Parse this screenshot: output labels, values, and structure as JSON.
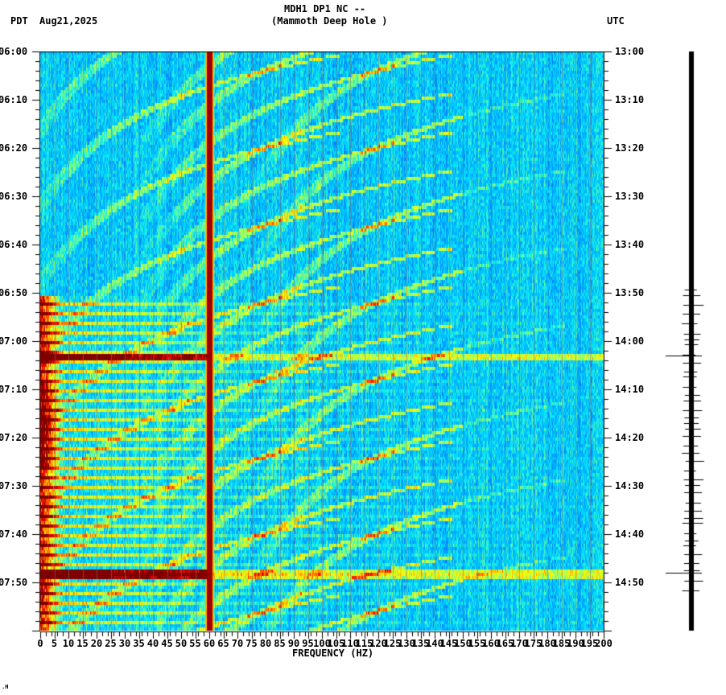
{
  "header": {
    "station_line": "MDH1 DP1 NC --",
    "station_name": "(Mammoth Deep Hole )",
    "left_tz": "PDT",
    "date": "Aug21,2025",
    "right_tz": "UTC"
  },
  "footer": {
    "corner_mark": ".H"
  },
  "colors": {
    "background": "#ffffff",
    "axis": "#000000",
    "colormap": [
      "#0000c8",
      "#0050ff",
      "#0096ff",
      "#00e6ff",
      "#80ff80",
      "#ffff00",
      "#ff8000",
      "#ff0000",
      "#800000"
    ]
  },
  "chart_data": {
    "type": "heatmap",
    "title": "MDH1 DP1 NC -- (Mammoth Deep Hole )",
    "xlabel": "FREQUENCY (HZ)",
    "ylabel_left": "PDT",
    "ylabel_right": "UTC",
    "xlim": [
      0,
      200
    ],
    "x_ticks": [
      0,
      5,
      10,
      15,
      20,
      25,
      30,
      35,
      40,
      45,
      50,
      55,
      60,
      65,
      70,
      75,
      80,
      85,
      90,
      95,
      100,
      105,
      110,
      115,
      120,
      125,
      130,
      135,
      140,
      145,
      150,
      155,
      160,
      165,
      170,
      175,
      180,
      185,
      190,
      195,
      200
    ],
    "y_ticks_left": [
      "06:00",
      "06:10",
      "06:20",
      "06:30",
      "06:40",
      "06:50",
      "07:00",
      "07:10",
      "07:20",
      "07:30",
      "07:40",
      "07:50"
    ],
    "y_ticks_right": [
      "13:00",
      "13:10",
      "13:20",
      "13:30",
      "13:40",
      "13:50",
      "14:00",
      "14:10",
      "14:20",
      "14:30",
      "14:40",
      "14:50"
    ],
    "time_range_minutes": 120,
    "features": {
      "constant_line_hz": 60,
      "strong_broadband_events_pdt": [
        "07:03",
        "07:48"
      ],
      "low_freq_energy_start_pdt": "06:50",
      "curved_harmonic_tracks": "repeating descending-frequency arcs from ~06:00 to 08:00 between 20-140 Hz"
    },
    "seismogram_trace": {
      "large_event_offsets_min": [
        63,
        108
      ],
      "note": "vertical trace with horizontal spikes at right"
    }
  }
}
